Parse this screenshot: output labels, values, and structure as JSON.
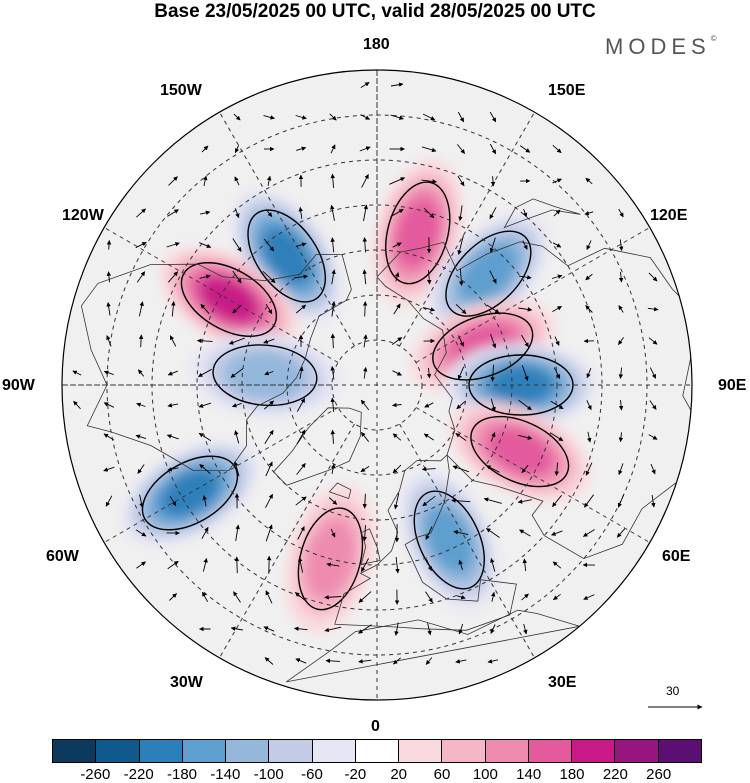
{
  "title": "Base 23/05/2025 00 UTC, valid 28/05/2025 00 UTC",
  "brand": "MODES",
  "brand_mark": "©",
  "longitude_labels": {
    "top": "180",
    "bottom": "0",
    "left": "90W",
    "right": "90E",
    "upper_left_1": "150W",
    "upper_left_2": "120W",
    "upper_right_1": "150E",
    "upper_right_2": "120E",
    "lower_left_1": "60W",
    "lower_left_2": "30W",
    "lower_right_1": "60E",
    "lower_right_2": "30E"
  },
  "reference_vector": "30",
  "colorbar": {
    "colors": [
      "#0b3a5e",
      "#0f5a8c",
      "#2d7fba",
      "#5f9fcf",
      "#94b8dc",
      "#c3cbe6",
      "#e6e6f4",
      "#ffffff",
      "#fadadd",
      "#f5b6c6",
      "#ee8cb0",
      "#e35a9d",
      "#c71a87",
      "#97157f",
      "#5c0f73"
    ],
    "ticks": [
      "-260",
      "-220",
      "-180",
      "-140",
      "-100",
      "-60",
      "-20",
      "20",
      "60",
      "100",
      "140",
      "180",
      "220",
      "260"
    ]
  },
  "anomaly_centers": [
    {
      "lon": -145,
      "lat": 55,
      "value": -180
    },
    {
      "lon": -120,
      "lat": 52,
      "value": 180
    },
    {
      "lon": 165,
      "lat": 55,
      "value": 140
    },
    {
      "lon": 135,
      "lat": 55,
      "value": -140
    },
    {
      "lon": 110,
      "lat": 65,
      "value": 140
    },
    {
      "lon": 90,
      "lat": 58,
      "value": -180
    },
    {
      "lon": 65,
      "lat": 55,
      "value": 140
    },
    {
      "lon": 25,
      "lat": 52,
      "value": -140
    },
    {
      "lon": -15,
      "lat": 50,
      "value": 100
    },
    {
      "lon": -60,
      "lat": 42,
      "value": -180
    },
    {
      "lon": -95,
      "lat": 65,
      "value": -100
    }
  ]
}
